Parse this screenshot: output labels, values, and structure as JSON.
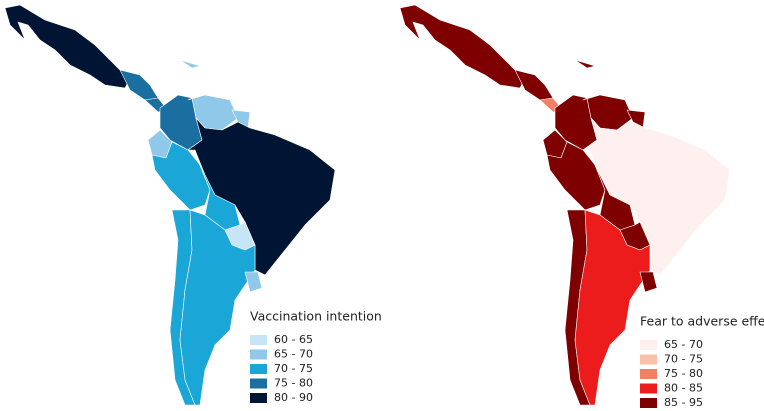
{
  "maps": [
    {
      "legend": {
        "title": "Vaccination intention",
        "items": [
          {
            "label": "60 - 65",
            "color": "#c6e5f6"
          },
          {
            "label": "65 - 70",
            "color": "#8fc8e8"
          },
          {
            "label": "70 - 75",
            "color": "#1aa7d8"
          },
          {
            "label": "75 - 80",
            "color": "#1a6fa0"
          },
          {
            "label": "80 - 90",
            "color": "#001533"
          }
        ]
      }
    },
    {
      "legend": {
        "title": "Fear to adverse effects",
        "items": [
          {
            "label": "65 - 70",
            "color": "#fdf0ee"
          },
          {
            "label": "70 - 75",
            "color": "#f9c1a7"
          },
          {
            "label": "75 - 80",
            "color": "#f47f66"
          },
          {
            "label": "80 - 85",
            "color": "#ec1c1c"
          },
          {
            "label": "85 - 95",
            "color": "#7f0000"
          }
        ]
      }
    }
  ]
}
